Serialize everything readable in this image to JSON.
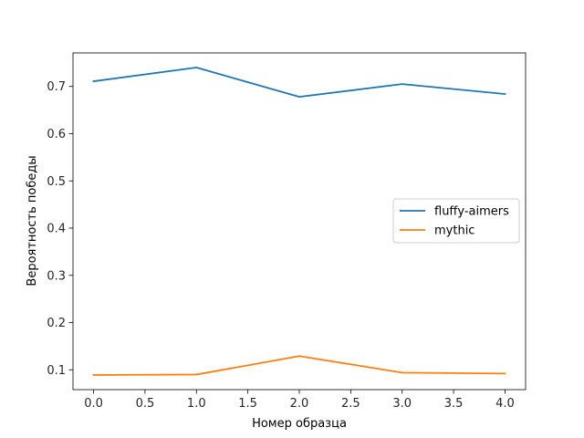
{
  "chart_data": {
    "type": "line",
    "title": "",
    "xlabel": "Номер образца",
    "ylabel": "Вероятность победы",
    "xlim": [
      -0.2,
      4.2
    ],
    "ylim": [
      0.058,
      0.771
    ],
    "xticks": [
      0.0,
      0.5,
      1.0,
      1.5,
      2.0,
      2.5,
      3.0,
      3.5,
      4.0
    ],
    "xtick_labels": [
      "0.0",
      "0.5",
      "1.0",
      "1.5",
      "2.0",
      "2.5",
      "3.0",
      "3.5",
      "4.0"
    ],
    "yticks": [
      0.1,
      0.2,
      0.3,
      0.4,
      0.5,
      0.6,
      0.7
    ],
    "ytick_labels": [
      "0.1",
      "0.2",
      "0.3",
      "0.4",
      "0.5",
      "0.6",
      "0.7"
    ],
    "grid": false,
    "legend_position": "center-right",
    "x": [
      0,
      1,
      2,
      3,
      4
    ],
    "series": [
      {
        "name": "fluffy-aimers",
        "color": "#1f77b4",
        "values": [
          0.711,
          0.74,
          0.678,
          0.705,
          0.684
        ]
      },
      {
        "name": "mythic",
        "color": "#ff7f0e",
        "values": [
          0.089,
          0.09,
          0.129,
          0.094,
          0.092
        ]
      }
    ]
  }
}
